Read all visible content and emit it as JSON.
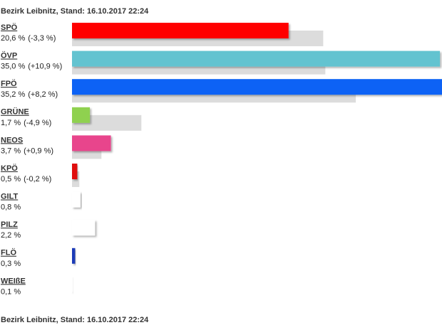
{
  "chart_data": {
    "type": "bar",
    "title": "Bezirk Leibnitz, Stand: 16.10.2017 22:24",
    "footer": "Bezirk Leibnitz, Stand: 16.10.2017 22:24",
    "categories": [
      "SPÖ",
      "ÖVP",
      "FPÖ",
      "GRÜNE",
      "NEOS",
      "KPÖ",
      "GILT",
      "PILZ",
      "FLÖ",
      "WEIßE"
    ],
    "values": [
      20.6,
      35.0,
      35.2,
      1.7,
      3.7,
      0.5,
      0.8,
      2.2,
      0.3,
      0.1
    ],
    "value_labels": [
      "20,6 %",
      "35,0 %",
      "35,2 %",
      "1,7 %",
      "3,7 %",
      "0,5 %",
      "0,8 %",
      "2,2 %",
      "0,3 %",
      "0,1 %"
    ],
    "changes": [
      -3.3,
      10.9,
      8.2,
      -4.9,
      0.9,
      -0.2,
      null,
      null,
      null,
      null
    ],
    "change_labels": [
      "(-3,3 %)",
      "(+10,9 %)",
      "(+8,2 %)",
      "(-4,9 %)",
      "(+0,9 %)",
      "(-0,2 %)",
      null,
      null,
      null,
      null
    ],
    "previous_values": [
      23.9,
      24.1,
      27.0,
      6.6,
      2.8,
      0.7,
      null,
      null,
      null,
      null
    ],
    "colors": [
      "#ff0000",
      "#63c3d0",
      "#0a62f5",
      "#8fd14f",
      "#e8448c",
      "#e01010",
      "#ffffff",
      "#ffffff",
      "#1a3ab8",
      "#ffffff"
    ],
    "previous_color": "#dcdcdc",
    "xlim": [
      0,
      35.2
    ]
  }
}
